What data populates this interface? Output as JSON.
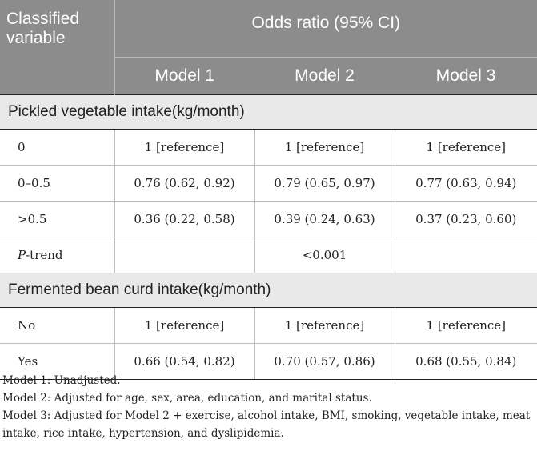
{
  "header": {
    "variable": "Classified variable",
    "variable_line1": "Classified",
    "variable_line2": "variable",
    "odds_ratio": "Odds ratio (95% CI)",
    "models": [
      "Model 1",
      "Model 2",
      "Model 3"
    ]
  },
  "sections": [
    {
      "title": "Pickled vegetable intake(kg/month)",
      "rows": [
        {
          "label": "0",
          "values": [
            "1 [reference]",
            "1 [reference]",
            "1 [reference]"
          ]
        },
        {
          "label": "0–0.5",
          "values": [
            "0.76 (0.62, 0.92)",
            "0.79 (0.65, 0.97)",
            "0.77 (0.63, 0.94)"
          ]
        },
        {
          "label": ">0.5",
          "values": [
            "0.36 (0.22, 0.58)",
            "0.39 (0.24, 0.63)",
            "0.37 (0.23, 0.60)"
          ]
        }
      ],
      "ptrend": {
        "label_italic": "P",
        "label_rest": "-trend",
        "value": "<0.001"
      }
    },
    {
      "title": "Fermented bean curd intake(kg/month)",
      "rows": [
        {
          "label": "No",
          "values": [
            "1 [reference]",
            "1 [reference]",
            "1 [reference]"
          ]
        },
        {
          "label": "Yes",
          "values": [
            "0.66 (0.54, 0.82)",
            "0.70 (0.57, 0.86)",
            "0.68 (0.55, 0.84)"
          ]
        }
      ]
    }
  ],
  "footnotes": [
    "Model 1: Unadjusted.",
    "Model 2: Adjusted for age, sex, area, education, and marital status.",
    "Model 3: Adjusted for Model 2 + exercise, alcohol intake, BMI, smoking, vegetable intake, meat intake, rice intake, hypertension, and dyslipidemia."
  ]
}
